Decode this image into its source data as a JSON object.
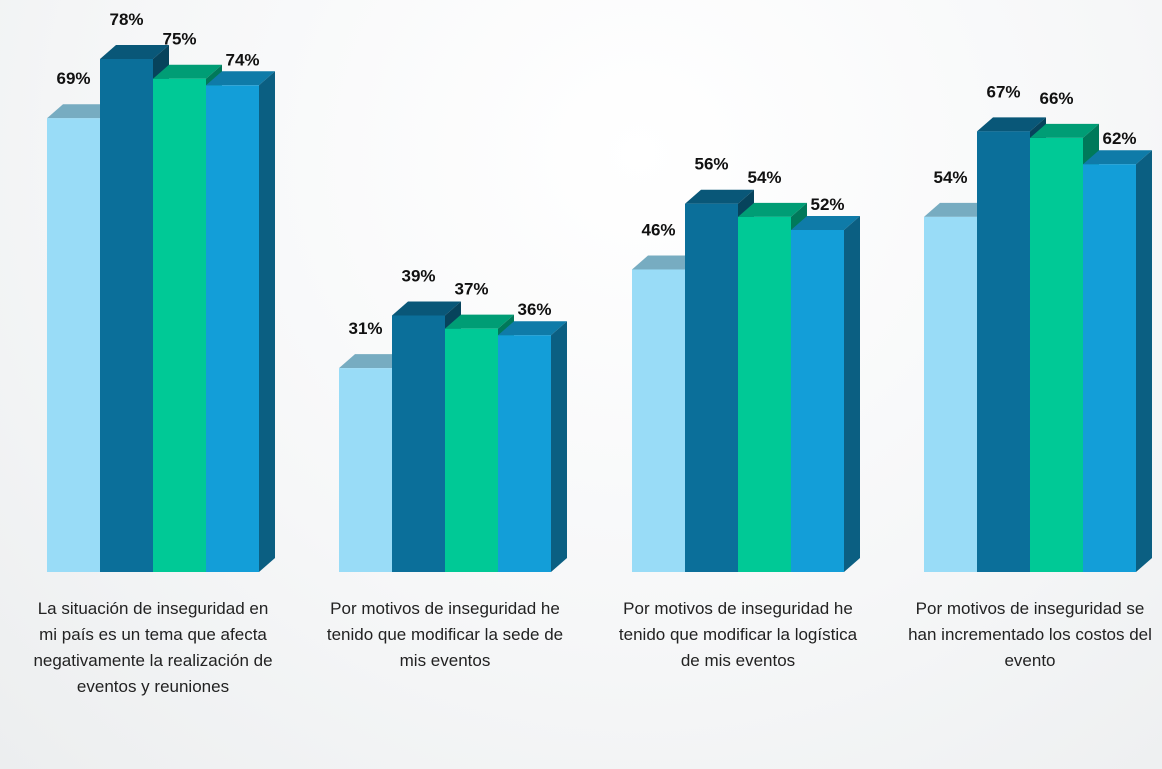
{
  "chart_data": {
    "type": "bar3d",
    "categories": [
      "La situación de inseguridad en mi país es un tema que afecta negativamente la realización de eventos y reuniones",
      "Por motivos de inseguridad he tenido que modificar la sede de mis eventos",
      "Por motivos de inseguridad he tenido que modificar la logística de mis eventos",
      "Por motivos de inseguridad se han incrementado los costos del evento"
    ],
    "series": [
      {
        "color": "#99dcf7",
        "values": [
          69,
          31,
          46,
          54
        ],
        "value_labels": [
          "69%",
          "31%",
          "46%",
          "54%"
        ]
      },
      {
        "color": "#0b6f9a",
        "values": [
          78,
          39,
          56,
          67
        ],
        "value_labels": [
          "78%",
          "39%",
          "56%",
          "67%"
        ]
      },
      {
        "color": "#00c996",
        "values": [
          75,
          37,
          54,
          66
        ],
        "value_labels": [
          "75%",
          "37%",
          "54%",
          "66%"
        ]
      },
      {
        "color": "#139ed8",
        "values": [
          74,
          36,
          52,
          62
        ],
        "value_labels": [
          "74%",
          "36%",
          "52%",
          "62%"
        ]
      }
    ]
  }
}
